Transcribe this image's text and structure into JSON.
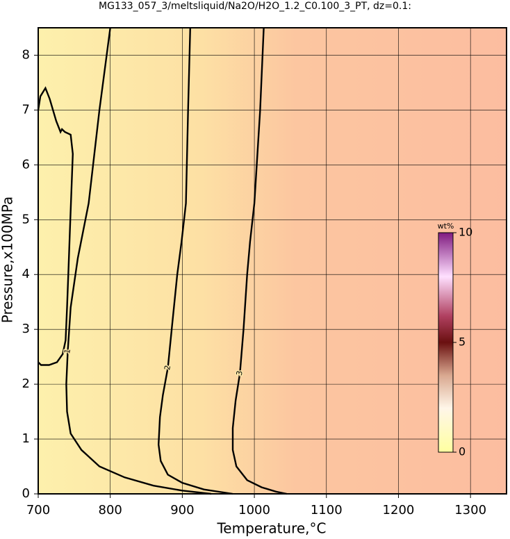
{
  "chart_data": {
    "type": "contour",
    "title": "MG133_057_3/meltsliquid/Na2O/H2O_1.2_C0.100_3_PT, dz=0.1:",
    "xlabel": "Temperature,°C",
    "ylabel": "Pressure,x100MPa",
    "xlim": [
      700,
      1350
    ],
    "ylim": [
      0,
      8.5
    ],
    "xticks": [
      700,
      800,
      900,
      1000,
      1100,
      1200,
      1300
    ],
    "yticks": [
      0,
      1,
      2,
      3,
      4,
      5,
      6,
      7,
      8
    ],
    "grid": true,
    "contours": [
      {
        "level": 1,
        "x": [
          700,
          703,
          710,
          716,
          725,
          731,
          733,
          737,
          745,
          748,
          746,
          744,
          742,
          740,
          738,
          734,
          726,
          715,
          704,
          700,
          null,
          800,
          785,
          770,
          755,
          745,
          741,
          739,
          740,
          745,
          760,
          785,
          820,
          860,
          900,
          940
        ],
        "y": [
          7.0,
          7.25,
          7.4,
          7.2,
          6.8,
          6.6,
          6.65,
          6.6,
          6.55,
          6.2,
          5.5,
          4.8,
          4.1,
          3.4,
          2.8,
          2.55,
          2.4,
          2.35,
          2.35,
          2.4,
          null,
          8.5,
          7.0,
          5.3,
          4.3,
          3.4,
          2.6,
          2.0,
          1.5,
          1.1,
          0.8,
          0.5,
          0.3,
          0.15,
          0.06,
          0.0
        ]
      },
      {
        "level": 2,
        "x": [
          911,
          908,
          905,
          899,
          893,
          886,
          880,
          873,
          869,
          867,
          870,
          880,
          900,
          930,
          970
        ],
        "y": [
          8.5,
          7.0,
          5.3,
          4.6,
          4.0,
          3.1,
          2.3,
          1.8,
          1.4,
          0.9,
          0.6,
          0.35,
          0.2,
          0.08,
          0.0
        ]
      },
      {
        "level": 3,
        "x": [
          1013,
          1008,
          1000,
          994,
          990,
          985,
          980,
          974,
          970,
          970,
          975,
          990,
          1010,
          1030,
          1045
        ],
        "y": [
          8.5,
          7.0,
          5.3,
          4.6,
          4.0,
          3.0,
          2.2,
          1.7,
          1.2,
          0.8,
          0.5,
          0.25,
          0.12,
          0.04,
          0.0
        ]
      }
    ],
    "colorbar": {
      "label": "wt%",
      "clim": [
        0,
        10
      ],
      "ticks": [
        0,
        5,
        10
      ]
    }
  }
}
